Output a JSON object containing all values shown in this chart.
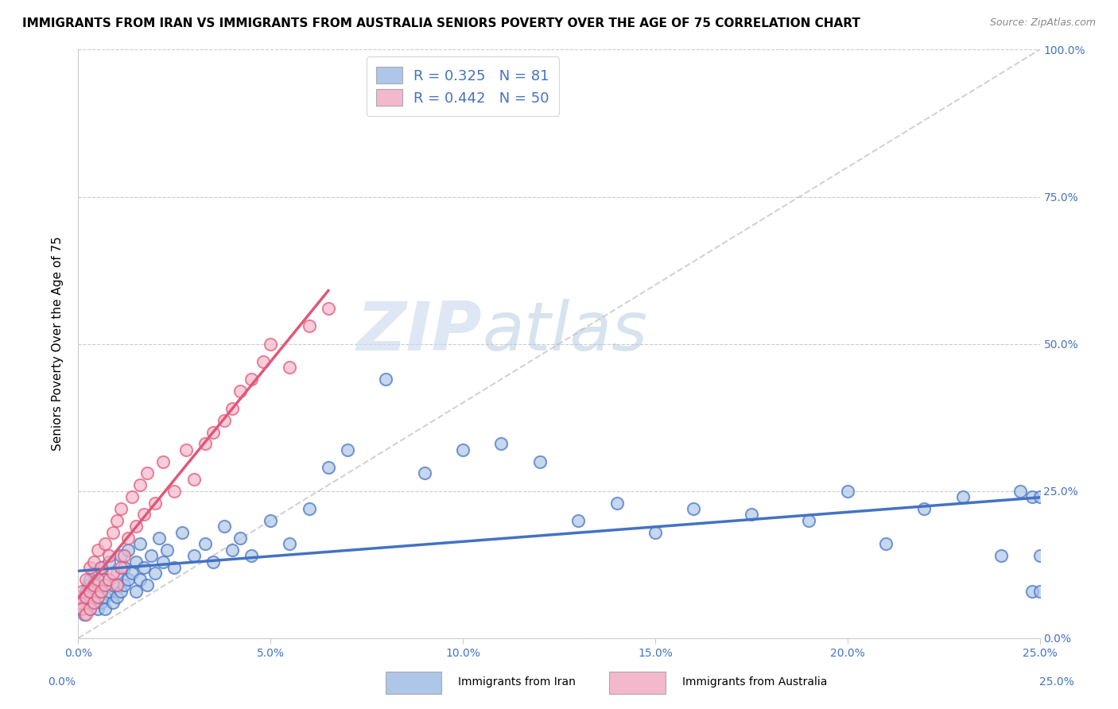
{
  "title": "IMMIGRANTS FROM IRAN VS IMMIGRANTS FROM AUSTRALIA SENIORS POVERTY OVER THE AGE OF 75 CORRELATION CHART",
  "source": "Source: ZipAtlas.com",
  "ylabel": "Seniors Poverty Over the Age of 75",
  "xlabel_iran": "Immigrants from Iran",
  "xlabel_australia": "Immigrants from Australia",
  "iran_R": 0.325,
  "iran_N": 81,
  "australia_R": 0.442,
  "australia_N": 50,
  "xlim": [
    0.0,
    0.25
  ],
  "ylim": [
    0.0,
    1.0
  ],
  "iran_color": "#aec6e8",
  "iran_line_color": "#4472c4",
  "australia_color": "#f4b8cc",
  "australia_line_color": "#e05878",
  "iran_scatter_x": [
    0.0005,
    0.001,
    0.0015,
    0.002,
    0.002,
    0.0025,
    0.003,
    0.003,
    0.003,
    0.004,
    0.004,
    0.004,
    0.005,
    0.005,
    0.005,
    0.006,
    0.006,
    0.006,
    0.007,
    0.007,
    0.007,
    0.008,
    0.008,
    0.009,
    0.009,
    0.01,
    0.01,
    0.011,
    0.011,
    0.012,
    0.012,
    0.013,
    0.013,
    0.014,
    0.015,
    0.015,
    0.016,
    0.016,
    0.017,
    0.018,
    0.019,
    0.02,
    0.021,
    0.022,
    0.023,
    0.025,
    0.027,
    0.03,
    0.033,
    0.035,
    0.038,
    0.04,
    0.042,
    0.045,
    0.05,
    0.055,
    0.06,
    0.065,
    0.07,
    0.08,
    0.09,
    0.1,
    0.11,
    0.12,
    0.13,
    0.14,
    0.15,
    0.16,
    0.175,
    0.19,
    0.2,
    0.21,
    0.22,
    0.23,
    0.24,
    0.245,
    0.248,
    0.248,
    0.25,
    0.25,
    0.25
  ],
  "iran_scatter_y": [
    0.07,
    0.05,
    0.04,
    0.08,
    0.06,
    0.09,
    0.05,
    0.07,
    0.1,
    0.06,
    0.08,
    0.11,
    0.05,
    0.07,
    0.09,
    0.06,
    0.08,
    0.12,
    0.05,
    0.07,
    0.1,
    0.08,
    0.13,
    0.06,
    0.09,
    0.07,
    0.11,
    0.08,
    0.14,
    0.09,
    0.12,
    0.1,
    0.15,
    0.11,
    0.08,
    0.13,
    0.1,
    0.16,
    0.12,
    0.09,
    0.14,
    0.11,
    0.17,
    0.13,
    0.15,
    0.12,
    0.18,
    0.14,
    0.16,
    0.13,
    0.19,
    0.15,
    0.17,
    0.14,
    0.2,
    0.16,
    0.22,
    0.29,
    0.32,
    0.44,
    0.28,
    0.32,
    0.33,
    0.3,
    0.2,
    0.23,
    0.18,
    0.22,
    0.21,
    0.2,
    0.25,
    0.16,
    0.22,
    0.24,
    0.14,
    0.25,
    0.08,
    0.24,
    0.14,
    0.08,
    0.24
  ],
  "australia_scatter_x": [
    0.0005,
    0.001,
    0.001,
    0.002,
    0.002,
    0.002,
    0.003,
    0.003,
    0.003,
    0.004,
    0.004,
    0.004,
    0.005,
    0.005,
    0.005,
    0.006,
    0.006,
    0.007,
    0.007,
    0.008,
    0.008,
    0.009,
    0.009,
    0.01,
    0.01,
    0.011,
    0.011,
    0.012,
    0.013,
    0.014,
    0.015,
    0.016,
    0.017,
    0.018,
    0.02,
    0.022,
    0.025,
    0.028,
    0.03,
    0.033,
    0.035,
    0.038,
    0.04,
    0.042,
    0.045,
    0.048,
    0.05,
    0.055,
    0.06,
    0.065
  ],
  "australia_scatter_y": [
    0.06,
    0.05,
    0.08,
    0.04,
    0.07,
    0.1,
    0.05,
    0.08,
    0.12,
    0.06,
    0.09,
    0.13,
    0.07,
    0.1,
    0.15,
    0.08,
    0.12,
    0.09,
    0.16,
    0.1,
    0.14,
    0.11,
    0.18,
    0.09,
    0.2,
    0.12,
    0.22,
    0.14,
    0.17,
    0.24,
    0.19,
    0.26,
    0.21,
    0.28,
    0.23,
    0.3,
    0.25,
    0.32,
    0.27,
    0.33,
    0.35,
    0.37,
    0.39,
    0.42,
    0.44,
    0.47,
    0.5,
    0.46,
    0.53,
    0.56
  ],
  "watermark_zip": "ZIP",
  "watermark_atlas": "atlas",
  "grid_color": "#cccccc",
  "background_color": "#ffffff",
  "title_fontsize": 11,
  "label_fontsize": 11,
  "tick_label_color": "#4472c4",
  "dashed_line_color": "#c0c0c0"
}
